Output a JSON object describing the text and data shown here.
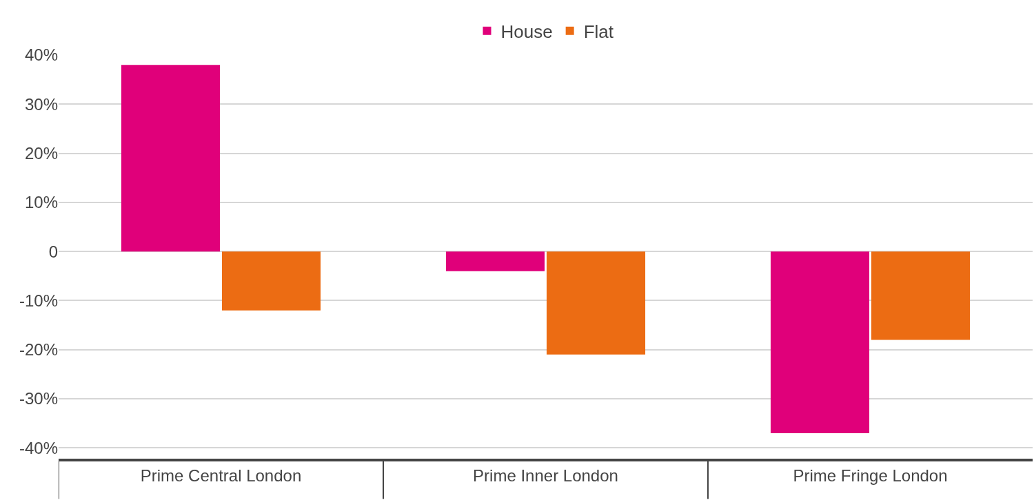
{
  "chart_data": {
    "type": "bar",
    "categories": [
      "Prime Central London",
      "Prime Inner London",
      "Prime Fringe London"
    ],
    "series": [
      {
        "name": "House",
        "color": "#e0007a",
        "values": [
          38,
          -4,
          -37
        ]
      },
      {
        "name": "Flat",
        "color": "#ec6c13",
        "values": [
          -12,
          -21,
          -18
        ]
      }
    ],
    "ylim": [
      -42.2,
      40
    ],
    "yticks": [
      {
        "value": -40,
        "label": "-40%"
      },
      {
        "value": -30,
        "label": "-30%"
      },
      {
        "value": -20,
        "label": "-20%"
      },
      {
        "value": -10,
        "label": "-10%"
      },
      0,
      {
        "value": 10,
        "label": "10%"
      },
      {
        "value": 20,
        "label": "20%"
      },
      {
        "value": 30,
        "label": "30%"
      },
      {
        "value": 40,
        "label": "40%"
      }
    ],
    "grid": "y",
    "legend": "top"
  }
}
